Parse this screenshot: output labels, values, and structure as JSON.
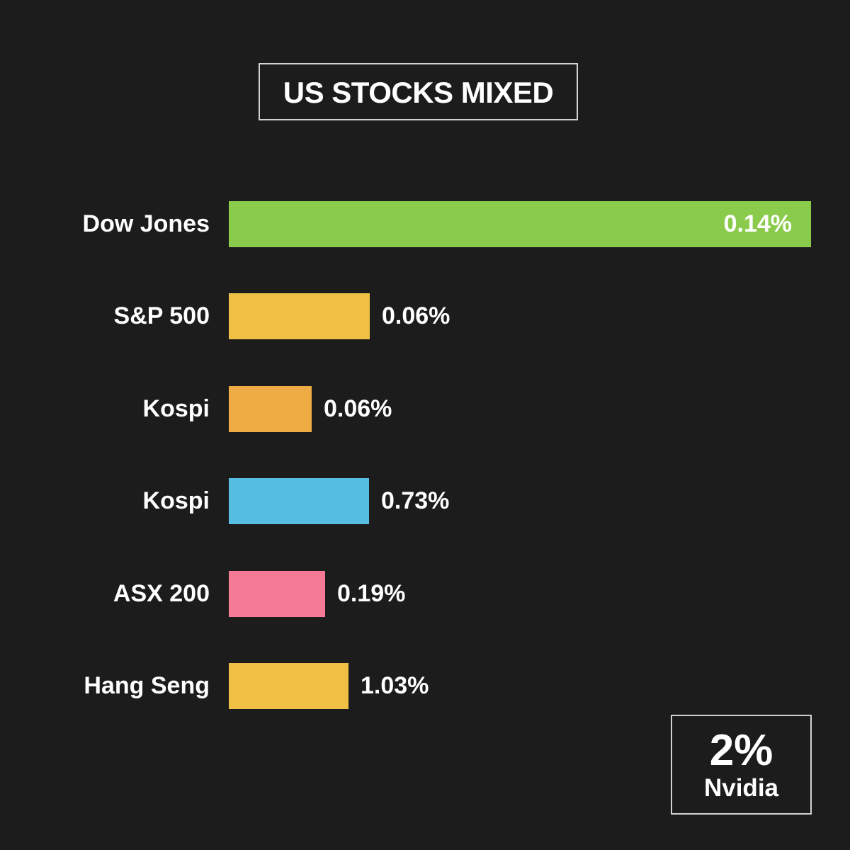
{
  "colors": {
    "background": "#1c1c1c",
    "text": "#ffffff",
    "box_border": "#d2d2d2"
  },
  "callout": {
    "value": "2%",
    "label": "Nvidia"
  },
  "chart_data": {
    "type": "bar",
    "orientation": "horizontal",
    "title": "US STOCKS MIXED",
    "grid": false,
    "categories": [
      "Dow Jones",
      "S&P 500",
      "Kospi",
      "Kospi",
      "ASX 200",
      "Hang Seng"
    ],
    "values": [
      0.14,
      0.06,
      0.06,
      0.73,
      0.19,
      1.03
    ],
    "value_labels": [
      "0.14%",
      "0.06%",
      "0.06%",
      "0.73%",
      "0.19%",
      "1.03%"
    ],
    "colors": [
      "#8bcb4c",
      "#efc043",
      "#efac45",
      "#56bde3",
      "#f47a98",
      "#efc043"
    ]
  }
}
